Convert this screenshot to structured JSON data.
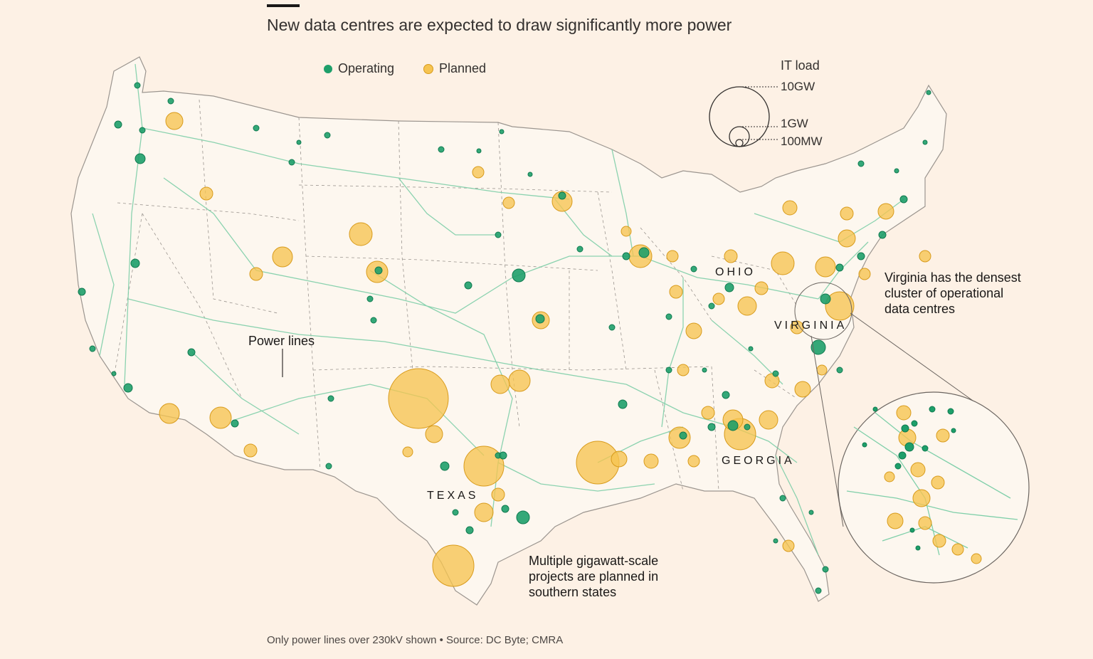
{
  "title": "New data centres are expected to draw significantly more power",
  "legend": {
    "operating": {
      "label": "Operating",
      "color": "#1e9f6a"
    },
    "planned": {
      "label": "Planned",
      "color": "#f6c451"
    }
  },
  "size_legend": {
    "title": "IT load",
    "levels": [
      {
        "label": "10GW",
        "value_mw": 10000
      },
      {
        "label": "1GW",
        "value_mw": 1000
      },
      {
        "label": "100MW",
        "value_mw": 100
      }
    ]
  },
  "state_labels": {
    "ohio": "OHIO",
    "virginia": "VIRGINIA",
    "texas": "TEXAS",
    "georgia": "GEORGIA"
  },
  "annotations": {
    "power_lines": "Power lines",
    "virginia": [
      "Virginia has the densest",
      "cluster of operational",
      "data centres"
    ],
    "south": [
      "Multiple gigawatt-scale",
      "projects are planned in",
      "southern states"
    ]
  },
  "footer": "Only power lines over 230kV shown • Source: DC Byte; CMRA",
  "colors": {
    "background": "#fdf1e5",
    "land": "#fdf6ee",
    "border": "#9b958f",
    "power_line": "#7fcfa9",
    "operating_stroke": "#0f7a4f",
    "planned_stroke": "#d89b1c"
  }
}
